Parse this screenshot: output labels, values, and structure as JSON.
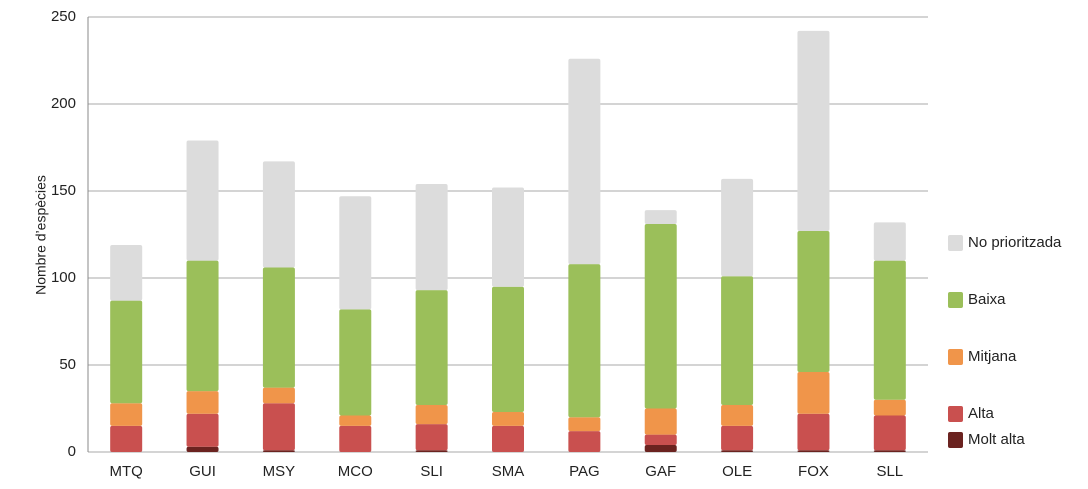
{
  "chart_data": {
    "type": "stacked-bar",
    "y_label": "Nombre d’espècies",
    "categories": [
      "MTQ",
      "GUI",
      "MSY",
      "MCO",
      "SLI",
      "SMA",
      "PAG",
      "GAF",
      "OLE",
      "FOX",
      "SLL"
    ],
    "series": [
      {
        "name": "Molt alta",
        "color": "#6b2320",
        "values": [
          0,
          3,
          1,
          0,
          1,
          0,
          0,
          4,
          1,
          1,
          1
        ]
      },
      {
        "name": "Alta",
        "color": "#c9504f",
        "values": [
          15,
          19,
          27,
          15,
          15,
          15,
          12,
          6,
          14,
          21,
          20
        ]
      },
      {
        "name": "Mitjana",
        "color": "#f0954a",
        "values": [
          13,
          13,
          9,
          6,
          11,
          8,
          8,
          15,
          12,
          24,
          9
        ]
      },
      {
        "name": "Baixa",
        "color": "#9bbf5a",
        "values": [
          59,
          75,
          69,
          61,
          66,
          72,
          88,
          106,
          74,
          81,
          80
        ]
      },
      {
        "name": "No prioritzada",
        "color": "#dcdcdc",
        "values": [
          32,
          69,
          61,
          65,
          61,
          57,
          118,
          8,
          56,
          115,
          22
        ]
      }
    ],
    "ylim": [
      0,
      250
    ],
    "yticks": [
      0,
      50,
      100,
      150,
      200,
      250
    ],
    "grid": true,
    "legend": "right"
  }
}
